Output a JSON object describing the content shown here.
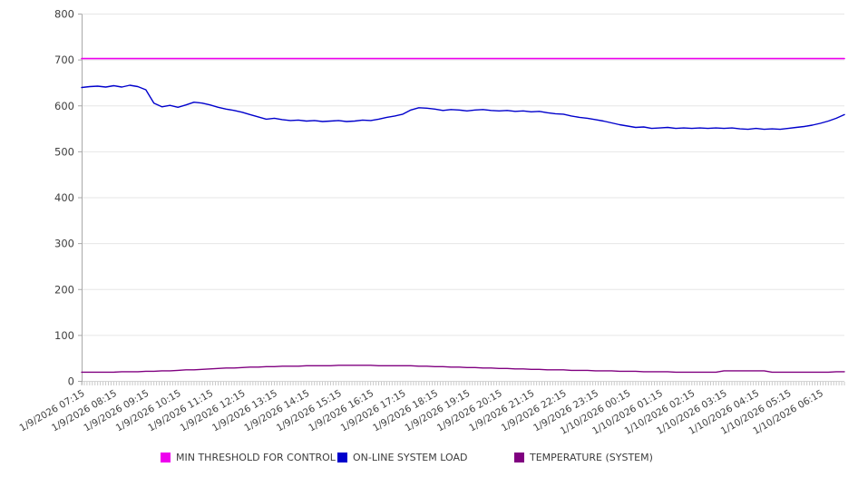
{
  "chart_data": {
    "type": "line",
    "title": "",
    "xlabel": "",
    "ylabel": "",
    "ylim": [
      0,
      800
    ],
    "y_ticks": [
      0,
      100,
      200,
      300,
      400,
      500,
      600,
      700,
      800
    ],
    "grid": "horizontal",
    "legend_position": "bottom",
    "x_step_minutes": 15,
    "x_tick_labels": [
      "1/9/2026 07:15",
      "1/9/2026 08:15",
      "1/9/2026 09:15",
      "1/9/2026 10:15",
      "1/9/2026 11:15",
      "1/9/2026 12:15",
      "1/9/2026 13:15",
      "1/9/2026 14:15",
      "1/9/2026 15:15",
      "1/9/2026 16:15",
      "1/9/2026 17:15",
      "1/9/2026 18:15",
      "1/9/2026 19:15",
      "1/9/2026 20:15",
      "1/9/2026 21:15",
      "1/9/2026 22:15",
      "1/9/2026 23:15",
      "1/10/2026 00:15",
      "1/10/2026 01:15",
      "1/10/2026 02:15",
      "1/10/2026 03:15",
      "1/10/2026 04:15",
      "1/10/2026 05:15",
      "1/10/2026 06:15"
    ],
    "series": [
      {
        "name": "MIN THRESHOLD FOR CONTROL",
        "color": "#ee00ee",
        "style": "constant",
        "value": 703
      },
      {
        "name": "ON-LINE SYSTEM LOAD",
        "color": "#0000cc",
        "values": [
          640,
          642,
          643,
          641,
          644,
          641,
          645,
          642,
          635,
          606,
          598,
          601,
          597,
          602,
          608,
          606,
          602,
          597,
          593,
          590,
          586,
          581,
          576,
          571,
          573,
          570,
          568,
          569,
          567,
          568,
          566,
          567,
          568,
          566,
          567,
          569,
          568,
          571,
          575,
          578,
          582,
          591,
          596,
          595,
          593,
          590,
          592,
          591,
          589,
          591,
          592,
          590,
          589,
          590,
          588,
          589,
          587,
          588,
          585,
          583,
          582,
          578,
          575,
          573,
          570,
          567,
          563,
          559,
          556,
          553,
          554,
          551,
          552,
          553,
          551,
          552,
          551,
          552,
          551,
          552,
          551,
          552,
          550,
          549,
          551,
          549,
          550,
          549,
          551,
          553,
          555,
          558,
          562,
          567,
          573,
          581
        ]
      },
      {
        "name": "TEMPERATURE (SYSTEM)",
        "color": "#800080",
        "values": [
          20,
          20,
          20,
          20,
          20,
          21,
          21,
          21,
          22,
          22,
          23,
          23,
          24,
          25,
          25,
          26,
          27,
          28,
          29,
          29,
          30,
          31,
          31,
          32,
          32,
          33,
          33,
          33,
          34,
          34,
          34,
          34,
          35,
          35,
          35,
          35,
          35,
          34,
          34,
          34,
          34,
          34,
          33,
          33,
          32,
          32,
          31,
          31,
          30,
          30,
          29,
          29,
          28,
          28,
          27,
          27,
          26,
          26,
          25,
          25,
          25,
          24,
          24,
          24,
          23,
          23,
          23,
          22,
          22,
          22,
          21,
          21,
          21,
          21,
          20,
          20,
          20,
          20,
          20,
          20,
          23,
          23,
          23,
          23,
          23,
          23,
          20,
          20,
          20,
          20,
          20,
          20,
          20,
          20,
          21,
          21
        ]
      }
    ],
    "colors": {
      "gridline": "#e6e6e6",
      "axis": "#a8a8a8",
      "minor_tick": "#c8c8c8",
      "label_text": "#404040"
    }
  }
}
